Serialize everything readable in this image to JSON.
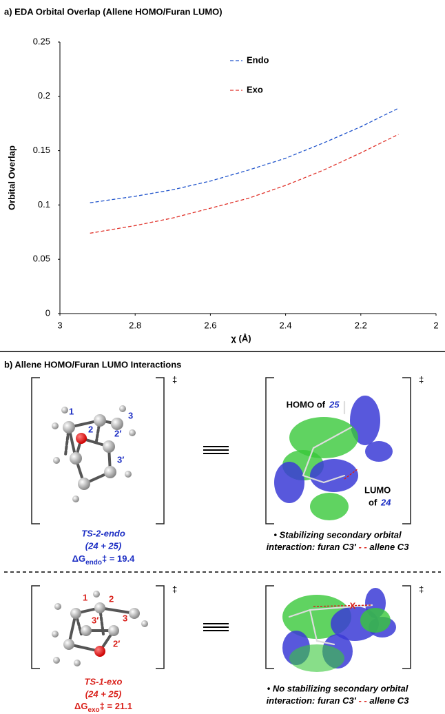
{
  "chart_data": {
    "type": "line",
    "title": "a) EDA Orbital Overlap (Allene HOMO/Furan LUMO)",
    "x_label": "χ (Å)",
    "y_label": "Orbital Overlap",
    "x": [
      2.92,
      2.8,
      2.7,
      2.6,
      2.5,
      2.4,
      2.3,
      2.2,
      2.1
    ],
    "series": [
      {
        "name": "Endo",
        "color": "#2255cc",
        "values": [
          0.102,
          0.108,
          0.114,
          0.122,
          0.132,
          0.143,
          0.157,
          0.172,
          0.189
        ]
      },
      {
        "name": "Exo",
        "color": "#e0322a",
        "values": [
          0.074,
          0.081,
          0.088,
          0.097,
          0.106,
          0.118,
          0.132,
          0.148,
          0.165
        ]
      }
    ],
    "xlim": [
      3,
      2
    ],
    "xticks": [
      3,
      2.8,
      2.6,
      2.4,
      2.2,
      2
    ],
    "ylim": [
      0,
      0.25
    ],
    "yticks": [
      0,
      0.05,
      0.1,
      0.15,
      0.2,
      0.25
    ],
    "grid": false,
    "line_style": "dashed"
  },
  "panel_b": {
    "title": "b) Allene HOMO/Furan LUMO Interactions",
    "dagger": "‡",
    "endo": {
      "atoms": [
        "1",
        "2",
        "3",
        "2′",
        "3′"
      ],
      "name": "TS-2-endo",
      "pair": "(24 + 25)",
      "energy_symbol": "ΔG",
      "energy_sub": "endo",
      "energy_rest": "‡ = 19.4",
      "homo_text": "HOMO of",
      "homo_num": "25",
      "lumo_text": "LUMO",
      "lumo_of": "of",
      "lumo_num": "24",
      "note_line1": "• Stabilizing secondary orbital",
      "note_line2a": "interaction: furan C3′",
      "note_dash": "- -",
      "note_line2b": "allene C3"
    },
    "exo": {
      "atoms": [
        "1",
        "2",
        "3",
        "3′",
        "2′"
      ],
      "name": "TS-1-exo",
      "pair": "(24 + 25)",
      "energy_symbol": "ΔG",
      "energy_sub": "exo",
      "energy_rest": "‡ = 21.1",
      "cross": "X",
      "note_line1": "• No stabilizing secondary orbital",
      "note_line2a": "interaction: furan C3′",
      "note_dash": "- -",
      "note_line2b": "allene C3"
    }
  }
}
